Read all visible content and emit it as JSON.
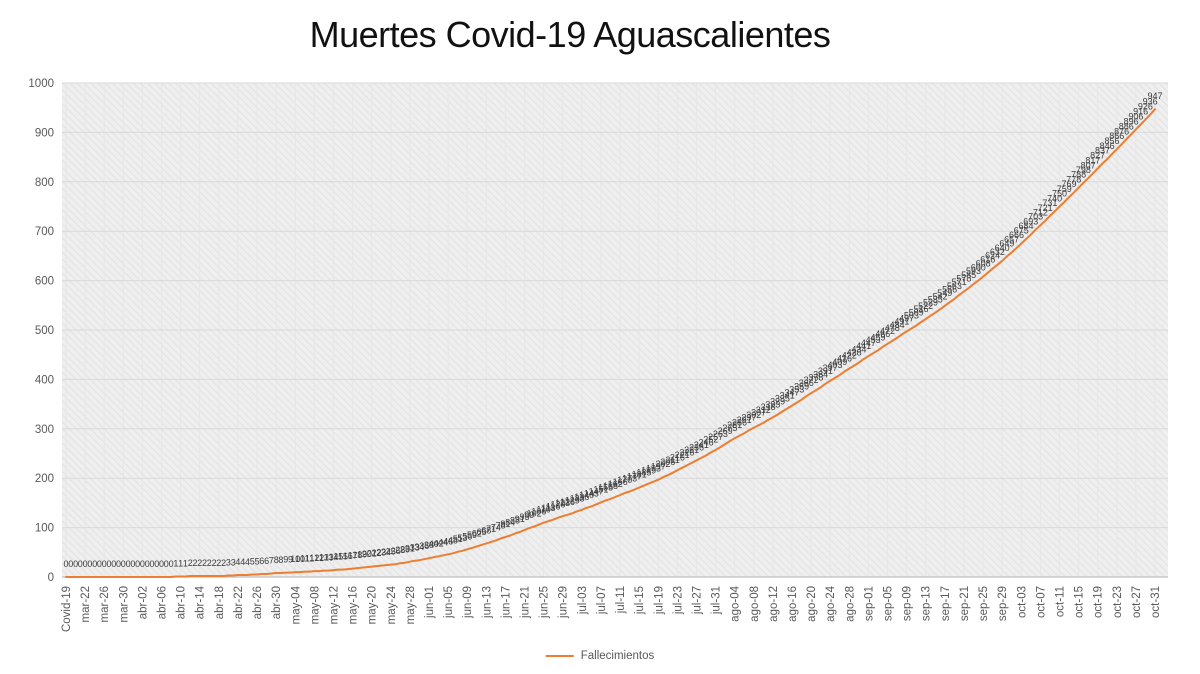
{
  "header": {
    "title": "Muertes Covid-19 Aguascalientes"
  },
  "legend": {
    "label": "Fallecimientos",
    "swatch_color": "#ED7D31"
  },
  "colors": {
    "series_line": "#ED7D31",
    "data_label": "#3d3d3d",
    "axis_text": "#595959",
    "gridline": "#d9d9d9",
    "vertical_gridline": "#e7e7e7",
    "axis_line": "#bfbfbf",
    "plot_background": "#efefef",
    "plot_hatch": "#e3e3e3",
    "title_text": "#111111"
  },
  "chart_data": {
    "type": "line",
    "title": "Muertes Covid-19 Aguascalientes",
    "xlabel": "",
    "ylabel": "",
    "ylim": [
      0,
      1000
    ],
    "y_ticks": [
      0,
      100,
      200,
      300,
      400,
      500,
      600,
      700,
      800,
      900,
      1000
    ],
    "grid": true,
    "legend_position": "bottom-center",
    "data_labels": "above-points",
    "x_tick_every": 4,
    "x_tick_labels": [
      "Covid-19",
      "mar-22",
      "mar-26",
      "mar-30",
      "abr-02",
      "abr-06",
      "abr-10",
      "abr-14",
      "abr-18",
      "abr-22",
      "abr-26",
      "abr-30",
      "may-04",
      "may-08",
      "may-12",
      "may-16",
      "may-20",
      "may-24",
      "may-28",
      "jun-01",
      "jun-05",
      "jun-09",
      "jun-13",
      "jun-17",
      "jun-21",
      "jun-25",
      "jun-29",
      "jul-03",
      "jul-07",
      "jul-11",
      "jul-15",
      "jul-19",
      "jul-23",
      "jul-27",
      "jul-31",
      "ago-04",
      "ago-08",
      "ago-12",
      "ago-16",
      "ago-20",
      "ago-24",
      "ago-28",
      "sep-01",
      "sep-05",
      "sep-09",
      "sep-13",
      "sep-17",
      "sep-21",
      "sep-25",
      "sep-29",
      "oct-03",
      "oct-07",
      "oct-11",
      "oct-15",
      "oct-19",
      "oct-23",
      "oct-27",
      "oct-31"
    ],
    "series": [
      {
        "name": "Fallecimientos",
        "color": "#ED7D31",
        "values": [
          0,
          0,
          0,
          0,
          0,
          0,
          0,
          0,
          0,
          0,
          0,
          0,
          0,
          0,
          0,
          0,
          0,
          0,
          0,
          0,
          0,
          0,
          0,
          1,
          1,
          1,
          2,
          2,
          2,
          2,
          2,
          2,
          2,
          2,
          3,
          3,
          4,
          4,
          4,
          5,
          5,
          6,
          6,
          7,
          8,
          8,
          9,
          9,
          10,
          10,
          11,
          11,
          12,
          12,
          13,
          13,
          14,
          15,
          15,
          16,
          17,
          18,
          19,
          20,
          21,
          22,
          23,
          24,
          25,
          26,
          28,
          29,
          31,
          33,
          34,
          36,
          38,
          40,
          42,
          44,
          46,
          48,
          51,
          53,
          56,
          59,
          62,
          65,
          68,
          71,
          74,
          78,
          81,
          84,
          88,
          91,
          95,
          99,
          102,
          106,
          110,
          113,
          116,
          120,
          123,
          126,
          129,
          133,
          136,
          140,
          143,
          147,
          151,
          155,
          158,
          162,
          166,
          170,
          173,
          177,
          181,
          185,
          189,
          193,
          197,
          202,
          206,
          211,
          216,
          221,
          226,
          231,
          236,
          241,
          246,
          252,
          257,
          263,
          269,
          275,
          281,
          286,
          291,
          297,
          302,
          307,
          312,
          318,
          323,
          329,
          335,
          341,
          347,
          353,
          359,
          366,
          372,
          378,
          384,
          391,
          397,
          403,
          409,
          416,
          422,
          428,
          434,
          441,
          447,
          453,
          459,
          466,
          472,
          478,
          484,
          491,
          497,
          503,
          509,
          516,
          522,
          529,
          535,
          542,
          549,
          556,
          563,
          571,
          578,
          585,
          593,
          600,
          608,
          616,
          624,
          632,
          640,
          649,
          657,
          666,
          675,
          684,
          693,
          703,
          712,
          721,
          731,
          740,
          750,
          759,
          769,
          778,
          788,
          798,
          807,
          817,
          827,
          837,
          846,
          856,
          866,
          876,
          886,
          896,
          906,
          916,
          926,
          936,
          947
        ]
      }
    ]
  }
}
